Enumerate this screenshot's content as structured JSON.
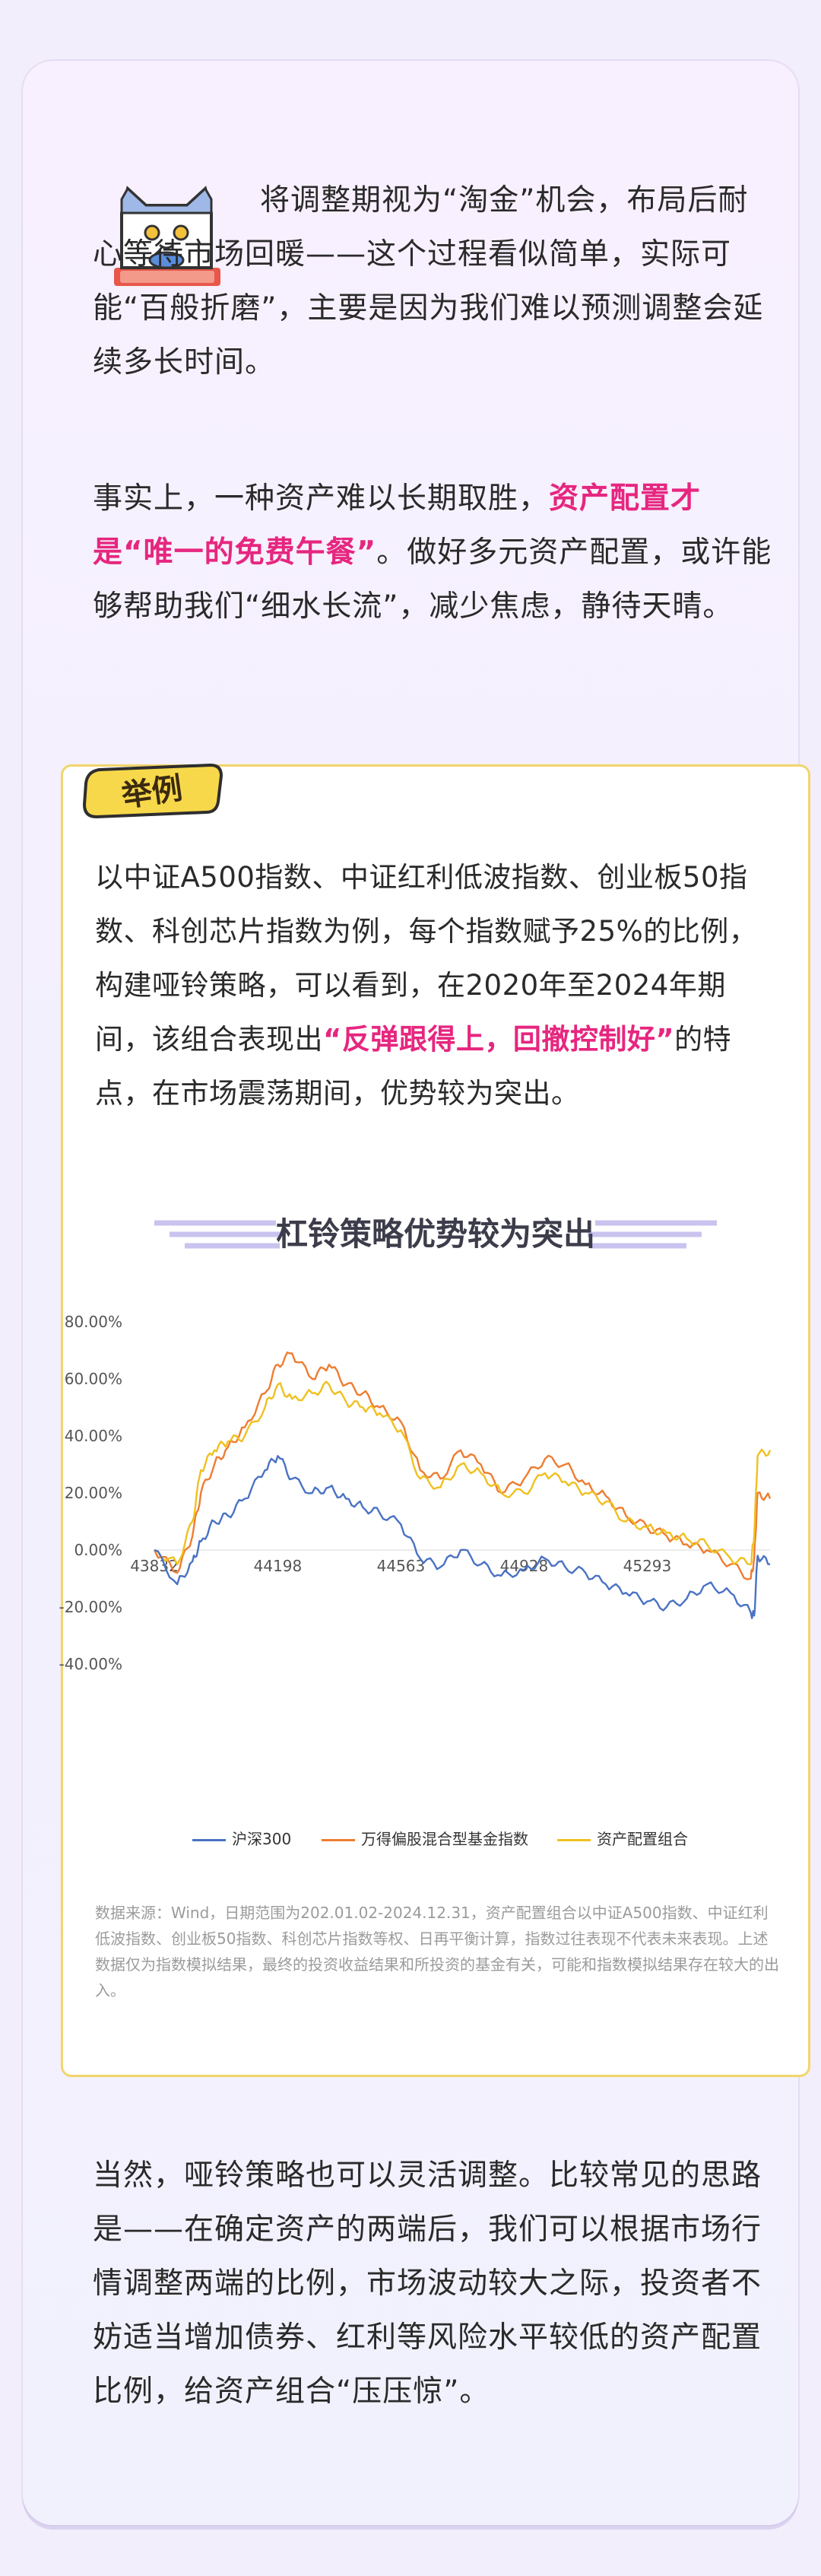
{
  "intro": {
    "para1": "将调整期视为“淘金”机会，布局后耐心等待市场回暖——这个过程看似简单，实际可能“百般折磨”，主要是因为我们难以预测调整会延续多长时间。",
    "para2_a": "事实上，一种资产难以长期取胜，",
    "para2_hl": "资产配置才是“唯一的免费午餐”",
    "para2_b": "。做好多元资产配置，或许能够帮助我们“细水长流”，减少焦虑，静待天晴。"
  },
  "example": {
    "tag": "举例",
    "text_a": "以中证A500指数、中证红利低波指数、创业板50指数、科创芯片指数为例，每个指数赋予25%的比例，构建哑铃策略，可以看到，在2020年至2024年期间，该组合表现出",
    "text_hl": "“反弹跟得上，回撤控制好”",
    "text_b": "的特点，在市场震荡期间，优势较为突出。",
    "note": "数据来源：Wind，日期范围为202.01.02-2024.12.31，资产配置组合以中证A500指数、中证红利低波指数、创业板50指数、科创芯片指数等权、日再平衡计算，指数过往表现不代表未来表现。上述数据仅为指数模拟结果，最终的投资收益结果和所投资的基金有关，可能和指数模拟结果存在较大的出入。"
  },
  "closing": "当然，哑铃策略也可以灵活调整。比较常见的思路是——在确定资产的两端后，我们可以根据市场行情调整两端的比例，市场波动较大之际，投资者不妨适当增加债券、红利等风险水平较低的资产配置比例，给资产组合“压压惊”。",
  "colors": {
    "highlight": "#e6267f",
    "border": "#f2d56b",
    "tag": "#f7d84a",
    "series_blue": "#4a72c4",
    "series_orange": "#ee7d31",
    "series_yellow": "#f0c020"
  },
  "chart_data": {
    "type": "line",
    "title": "杠铃策略优势较为突出",
    "xlabel": "",
    "ylabel": "",
    "x_range": [
      43832,
      45657
    ],
    "ylim": [
      -40,
      80
    ],
    "y_ticks": [
      "80.00%",
      "60.00%",
      "40.00%",
      "20.00%",
      "0.00%",
      "-20.00%",
      "-40.00%"
    ],
    "x_ticks": [
      "43832",
      "44198",
      "44563",
      "44928",
      "45293"
    ],
    "grid": false,
    "legend_position": "bottom",
    "x": [
      43832,
      43900,
      43945,
      43970,
      44010,
      44050,
      44100,
      44160,
      44198,
      44240,
      44300,
      44350,
      44400,
      44450,
      44500,
      44563,
      44620,
      44680,
      44740,
      44800,
      44860,
      44928,
      44990,
      45050,
      45110,
      45170,
      45230,
      45293,
      45350,
      45410,
      45470,
      45540,
      45600,
      45610,
      45620,
      45657
    ],
    "series": [
      {
        "name": "沪深300",
        "values": [
          0,
          -12,
          -4,
          3,
          10,
          12,
          18,
          28,
          33,
          25,
          20,
          22,
          18,
          15,
          13,
          9,
          -3,
          -6,
          0,
          -5,
          -9,
          -7,
          -3,
          -6,
          -8,
          -12,
          -15,
          -18,
          -20,
          -17,
          -12,
          -15,
          -22,
          -23,
          -2,
          -5
        ]
      },
      {
        "name": "万得偏股混合型基金指数",
        "values": [
          0,
          -8,
          5,
          20,
          30,
          36,
          43,
          55,
          65,
          69,
          60,
          65,
          58,
          55,
          50,
          45,
          28,
          25,
          35,
          30,
          20,
          25,
          32,
          30,
          23,
          19,
          12,
          8,
          5,
          2,
          0,
          -5,
          -10,
          -3,
          20,
          18
        ]
      },
      {
        "name": "资产配置组合",
        "values": [
          0,
          -5,
          10,
          28,
          35,
          38,
          40,
          50,
          58,
          53,
          55,
          58,
          52,
          50,
          48,
          42,
          25,
          22,
          30,
          27,
          20,
          20,
          27,
          24,
          20,
          17,
          10,
          8,
          6,
          4,
          2,
          -3,
          -5,
          5,
          33,
          35
        ]
      }
    ]
  }
}
